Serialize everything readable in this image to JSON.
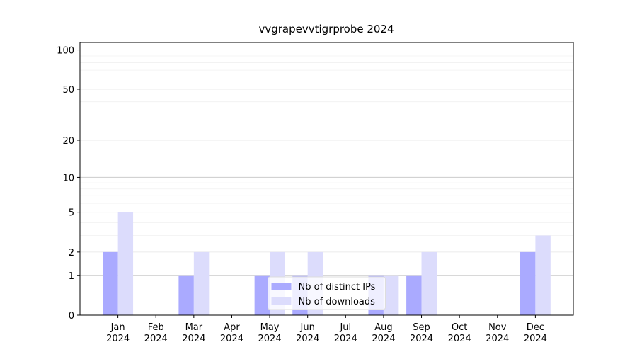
{
  "chart_data": {
    "type": "bar",
    "title": "vvgrapevvtigrprobe 2024",
    "categories": [
      "Jan 2024",
      "Feb 2024",
      "Mar 2024",
      "Apr 2024",
      "May 2024",
      "Jun 2024",
      "Jul 2024",
      "Aug 2024",
      "Sep 2024",
      "Oct 2024",
      "Nov 2024",
      "Dec 2024"
    ],
    "series": [
      {
        "name": "Nb of distinct IPs",
        "color": "#aaaaff",
        "values": [
          2,
          0,
          1,
          0,
          1,
          1,
          0,
          1,
          1,
          0,
          0,
          2
        ]
      },
      {
        "name": "Nb of downloads",
        "color": "#dcdcfc",
        "values": [
          5,
          0,
          2,
          0,
          2,
          2,
          0,
          1,
          2,
          0,
          0,
          3
        ]
      }
    ],
    "y_scale": "symlog",
    "ylim": [
      0,
      114
    ],
    "yticks": [
      0,
      1,
      2,
      5,
      10,
      20,
      50,
      100
    ],
    "minor_yticks": [
      3,
      4,
      6,
      7,
      8,
      9,
      30,
      40,
      60,
      70,
      80,
      90
    ],
    "grid": true,
    "legend": "lower center"
  }
}
